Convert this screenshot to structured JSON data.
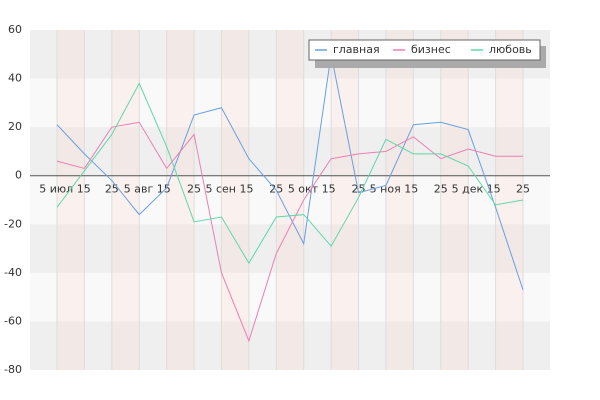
{
  "chart_data": {
    "type": "line",
    "categories": [
      "5 июл 15",
      null,
      "25",
      "5 авг 15",
      null,
      "25",
      "5 сен 15",
      null,
      "25",
      "5 окт 15",
      null,
      "25",
      "5 ноя 15",
      null,
      "25",
      "5 дек 15",
      null,
      "25"
    ],
    "series": [
      {
        "name": "главная",
        "color": "#6a9fe0",
        "values": [
          21,
          9,
          -2,
          -16,
          -5,
          25,
          28,
          7,
          -6,
          -28,
          50,
          -7,
          -4,
          21,
          22,
          19,
          -13,
          -47
        ]
      },
      {
        "name": "бизнес",
        "color": "#ee7fb3",
        "values": [
          6,
          3,
          20,
          22,
          3,
          17,
          -40,
          -68,
          -32,
          -10,
          7,
          9,
          10,
          16,
          7,
          11,
          8,
          8
        ]
      },
      {
        "name": "любовь",
        "color": "#5fd8a8",
        "values": [
          -13,
          2,
          17,
          38,
          12,
          -19,
          -17,
          -36,
          -17,
          -16,
          -29,
          -9,
          15,
          9,
          9,
          4,
          -12,
          -10
        ]
      }
    ],
    "ylim": [
      -80,
      60
    ],
    "yticks": [
      -80,
      -60,
      -40,
      -20,
      0,
      20,
      40,
      60
    ],
    "grid": true,
    "legend": "top-right"
  }
}
